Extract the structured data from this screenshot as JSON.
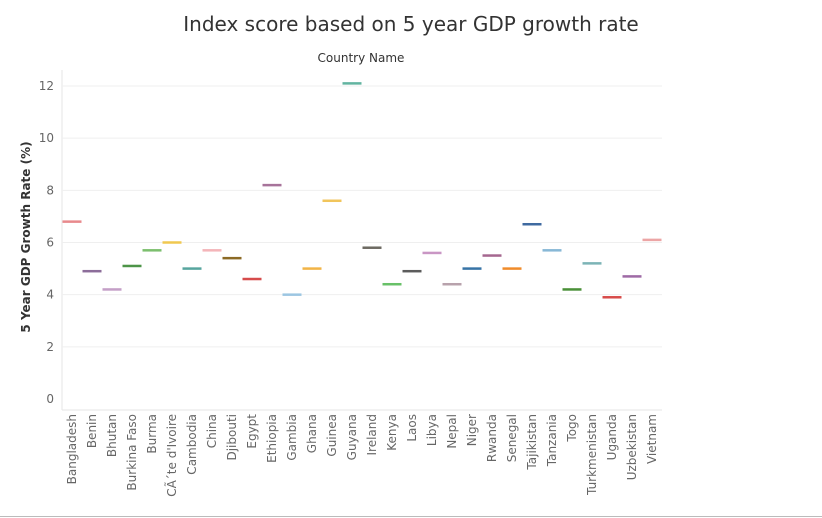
{
  "chart_data": {
    "type": "scatter",
    "mark": "horizontal dash",
    "title": "Index score based on 5 year GDP growth rate",
    "header": "Country Name",
    "xlabel": "",
    "ylabel": "5 Year GDP Growth Rate (%)",
    "ylim": [
      0,
      12.5
    ],
    "yticks": [
      0,
      2,
      4,
      6,
      8,
      10,
      12
    ],
    "grid": true,
    "categories": [
      "Bangladesh",
      "Benin",
      "Bhutan",
      "Burkina Faso",
      "Burma",
      "CÃ´te d'Ivoire",
      "Cambodia",
      "China",
      "Djibouti",
      "Egypt",
      "Ethiopia",
      "Gambia",
      "Ghana",
      "Guinea",
      "Guyana",
      "Ireland",
      "Kenya",
      "Laos",
      "Libya",
      "Nepal",
      "Niger",
      "Rwanda",
      "Senegal",
      "Tajikistan",
      "Tanzania",
      "Togo",
      "Turkmenistan",
      "Uganda",
      "Uzbekistan",
      "Vietnam"
    ],
    "values": [
      6.8,
      4.9,
      4.2,
      5.1,
      5.7,
      6.0,
      5.0,
      5.7,
      5.4,
      4.6,
      8.2,
      4.0,
      5.0,
      7.6,
      12.1,
      5.8,
      4.4,
      4.9,
      5.6,
      4.4,
      5.0,
      5.5,
      5.0,
      6.7,
      5.7,
      4.2,
      5.2,
      3.9,
      4.7,
      6.1
    ],
    "colors": [
      "#e8898c",
      "#8c6d9a",
      "#c49fc7",
      "#4d9448",
      "#7cbf6e",
      "#f0c850",
      "#57a59e",
      "#f4b5b9",
      "#8c6a25",
      "#d64b4b",
      "#a7739a",
      "#9cc6e2",
      "#f2b446",
      "#f1c55b",
      "#62b4a0",
      "#6d6a62",
      "#68c168",
      "#5c5c5c",
      "#c996c4",
      "#b8a2ac",
      "#3774a6",
      "#a5678f",
      "#f08b2a",
      "#3f6aa0",
      "#88b8d6",
      "#4a9038",
      "#7cb4b6",
      "#d84c4a",
      "#9e6aa5",
      "#eca5a5"
    ]
  }
}
